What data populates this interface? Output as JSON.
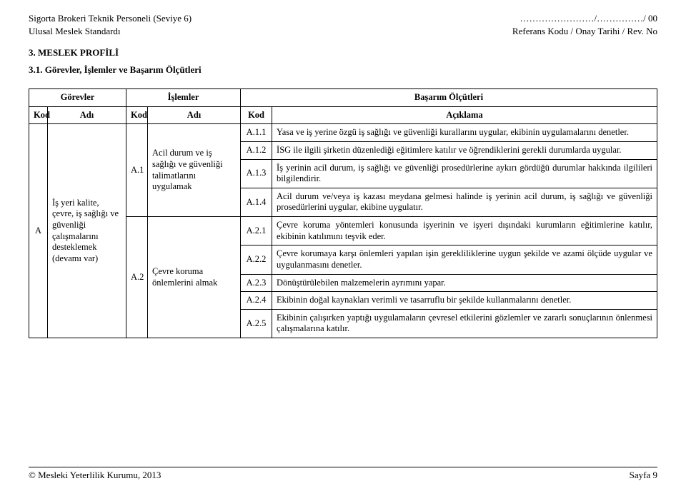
{
  "header": {
    "left1": "Sigorta Brokeri Teknik Personeli (Seviye 6)",
    "left2": "Ulusal Meslek Standardı",
    "right1": "……………………/……………/ 00",
    "right2": "Referans Kodu / Onay Tarihi / Rev. No"
  },
  "section_heading": "3. MESLEK PROFİLİ",
  "sub_heading": "3.1. Görevler, İşlemler ve Başarım Ölçütleri",
  "table": {
    "group_headers": {
      "gorevler": "Görevler",
      "islemler": "İşlemler",
      "basarim": "Başarım Ölçütleri"
    },
    "sub_headers": {
      "kod": "Kod",
      "adi": "Adı",
      "aciklama": "Açıklama"
    },
    "gorev": {
      "kod": "A",
      "adi": "İş yeri kalite, çevre, iş sağlığı ve güvenliği çalışmalarını desteklemek (devamı var)"
    },
    "islem1": {
      "kod": "A.1",
      "adi": "Acil durum ve iş sağlığı ve güvenliği talimatlarını uygulamak"
    },
    "islem2": {
      "kod": "A.2",
      "adi": "Çevre koruma önlemlerini almak"
    },
    "rows": [
      {
        "k": "A.1.1",
        "a": "Yasa ve iş yerine özgü iş sağlığı ve güvenliği kurallarını uygular, ekibinin uygulamalarını denetler."
      },
      {
        "k": "A.1.2",
        "a": "İSG ile ilgili şirketin düzenlediği eğitimlere katılır ve öğrendiklerini gerekli durumlarda uygular."
      },
      {
        "k": "A.1.3",
        "a": "İş yerinin acil durum, iş sağlığı ve güvenliği prosedürlerine aykırı gördüğü durumlar hakkında ilgilileri bilgilendirir."
      },
      {
        "k": "A.1.4",
        "a": "Acil durum ve/veya iş kazası meydana gelmesi halinde iş yerinin acil durum, iş sağlığı ve güvenliği prosedürlerini uygular, ekibine uygulatır."
      },
      {
        "k": "A.2.1",
        "a": "Çevre koruma yöntemleri konusunda işyerinin ve işyeri dışındaki kurumların eğitimlerine katılır, ekibinin katılımını teşvik eder."
      },
      {
        "k": "A.2.2",
        "a": "Çevre korumaya karşı önlemleri yapılan işin gerekliliklerine uygun şekilde ve azami ölçüde uygular ve uygulanmasını denetler."
      },
      {
        "k": "A.2.3",
        "a": "Dönüştürülebilen malzemelerin ayrımını yapar."
      },
      {
        "k": "A.2.4",
        "a": "Ekibinin doğal kaynakları verimli ve tasarruflu bir şekilde kullanmalarını denetler."
      },
      {
        "k": "A.2.5",
        "a": "Ekibinin çalışırken yaptığı uygulamaların çevresel etkilerini gözlemler ve zararlı sonuçlarının önlenmesi çalışmalarına katılır."
      }
    ]
  },
  "footer": {
    "left": "© Mesleki Yeterlilik Kurumu, 2013",
    "right": "Sayfa 9"
  }
}
